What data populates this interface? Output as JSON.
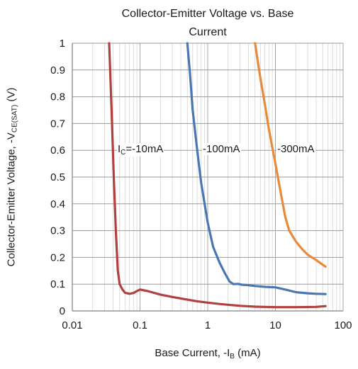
{
  "chart_data": {
    "type": "line",
    "title_line1": "Collector-Emitter Voltage vs. Base",
    "title_line2": "Current",
    "xlabel": {
      "text": "Base Current, -I",
      "sub": "B",
      "tail": " (mA)"
    },
    "ylabel": {
      "text": "Collector-Emitter Voltage, -V",
      "sub": "CE(SAT)",
      "tail": " (V)"
    },
    "x_scale": "log",
    "xlim": [
      0.01,
      100
    ],
    "ylim": [
      0,
      1
    ],
    "x_ticks": [
      "0.01",
      "0.1",
      "1",
      "10",
      "100"
    ],
    "y_ticks": [
      "0",
      "0.1",
      "0.2",
      "0.3",
      "0.4",
      "0.5",
      "0.6",
      "0.7",
      "0.8",
      "0.9",
      "1"
    ],
    "grid": true,
    "series": [
      {
        "name": "IC=-10mA",
        "label_main": "I",
        "label_sub": "C",
        "label_tail": "=-10mA",
        "color": "#b0413e",
        "points": [
          [
            0.035,
            1.0
          ],
          [
            0.038,
            0.75
          ],
          [
            0.041,
            0.5
          ],
          [
            0.044,
            0.3
          ],
          [
            0.047,
            0.15
          ],
          [
            0.05,
            0.1
          ],
          [
            0.055,
            0.08
          ],
          [
            0.06,
            0.068
          ],
          [
            0.07,
            0.064
          ],
          [
            0.08,
            0.067
          ],
          [
            0.09,
            0.074
          ],
          [
            0.1,
            0.08
          ],
          [
            0.13,
            0.074
          ],
          [
            0.2,
            0.061
          ],
          [
            0.3,
            0.052
          ],
          [
            0.5,
            0.042
          ],
          [
            0.7,
            0.036
          ],
          [
            1.0,
            0.031
          ],
          [
            1.5,
            0.026
          ],
          [
            2.0,
            0.023
          ],
          [
            3.0,
            0.019
          ],
          [
            5.0,
            0.016
          ],
          [
            10.0,
            0.014
          ],
          [
            20.0,
            0.014
          ],
          [
            40.0,
            0.015
          ],
          [
            55.0,
            0.018
          ]
        ]
      },
      {
        "name": "-100mA",
        "color": "#4a77b4",
        "points": [
          [
            0.5,
            1.0
          ],
          [
            0.55,
            0.88
          ],
          [
            0.6,
            0.75
          ],
          [
            0.7,
            0.6
          ],
          [
            0.8,
            0.48
          ],
          [
            0.9,
            0.4
          ],
          [
            1.0,
            0.33
          ],
          [
            1.2,
            0.24
          ],
          [
            1.5,
            0.18
          ],
          [
            1.8,
            0.14
          ],
          [
            2.1,
            0.11
          ],
          [
            2.4,
            0.1
          ],
          [
            2.8,
            0.101
          ],
          [
            3.2,
            0.098
          ],
          [
            4.0,
            0.096
          ],
          [
            5.0,
            0.093
          ],
          [
            7.0,
            0.09
          ],
          [
            10.0,
            0.088
          ],
          [
            15.0,
            0.078
          ],
          [
            20.0,
            0.07
          ],
          [
            30.0,
            0.066
          ],
          [
            40.0,
            0.064
          ],
          [
            55.0,
            0.063
          ]
        ]
      },
      {
        "name": "-300mA",
        "color": "#e88a3a",
        "points": [
          [
            5.0,
            1.0
          ],
          [
            5.5,
            0.93
          ],
          [
            6.0,
            0.87
          ],
          [
            7.0,
            0.77
          ],
          [
            8.0,
            0.68
          ],
          [
            10.0,
            0.55
          ],
          [
            12.0,
            0.44
          ],
          [
            14.0,
            0.35
          ],
          [
            16.0,
            0.3
          ],
          [
            20.0,
            0.26
          ],
          [
            25.0,
            0.23
          ],
          [
            30.0,
            0.21
          ],
          [
            40.0,
            0.19
          ],
          [
            55.0,
            0.165
          ]
        ]
      }
    ]
  }
}
